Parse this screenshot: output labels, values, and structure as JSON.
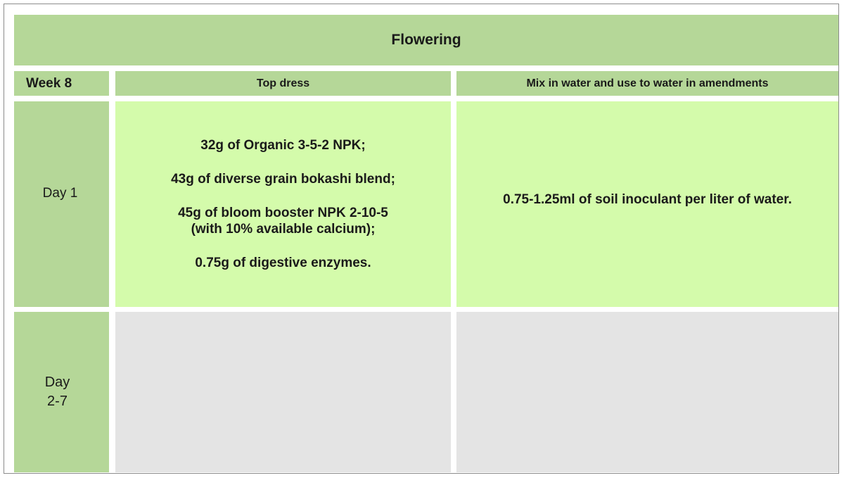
{
  "table": {
    "title": "Flowering",
    "week_label": "Week 8",
    "columns": {
      "top_dress": "Top dress",
      "mix_water": "Mix in water and use to water in amendments"
    },
    "rows": [
      {
        "day_label": "Day 1",
        "top_dress": [
          "32g of Organic 3-5-2 NPK;",
          "43g of diverse grain bokashi blend;",
          "45g of bloom booster NPK 2-10-5",
          "(with 10% available calcium);",
          "0.75g of digestive enzymes."
        ],
        "mix_water": "0.75-1.25ml of soil inoculant per liter of water."
      },
      {
        "day_label_lines": [
          "Day",
          "2-7"
        ],
        "top_dress": "",
        "mix_water": ""
      }
    ]
  },
  "colors": {
    "header_green": "#b5d798",
    "cell_green": "#d4fbab",
    "empty_grey": "#e4e4e4",
    "border": "#8c8c8c"
  }
}
